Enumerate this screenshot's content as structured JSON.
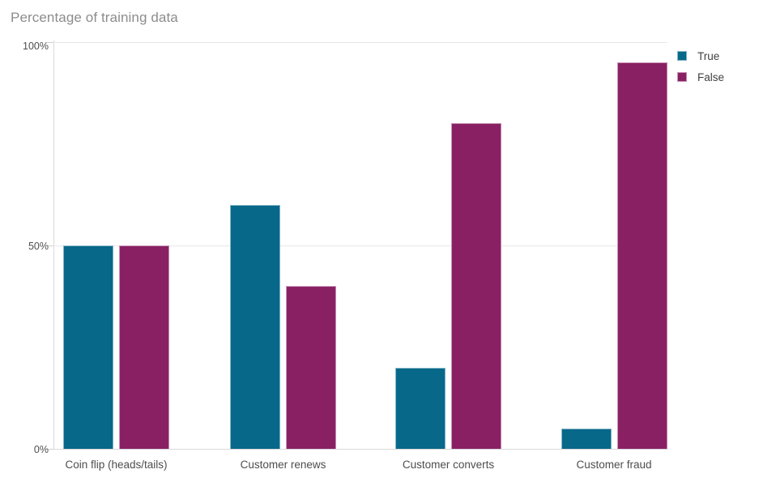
{
  "title": "Percentage of training data",
  "chart_data": {
    "type": "bar",
    "title": "Percentage of training data",
    "categories": [
      "Coin flip (heads/tails)",
      "Customer renews",
      "Customer converts",
      "Customer fraud"
    ],
    "series": [
      {
        "name": "True",
        "color": "#07688a",
        "values": [
          50,
          60,
          20,
          5
        ]
      },
      {
        "name": "False",
        "color": "#8a2064",
        "values": [
          50,
          40,
          80,
          95
        ]
      }
    ],
    "xlabel": "",
    "ylabel": "",
    "ylim": [
      0,
      100
    ],
    "yticks": [
      {
        "value": 0,
        "label": "0%"
      },
      {
        "value": 50,
        "label": "50%"
      },
      {
        "value": 100,
        "label": "100%"
      }
    ],
    "grid": true,
    "legend_position": "top-right",
    "legend_labels": [
      "True",
      "False"
    ]
  }
}
